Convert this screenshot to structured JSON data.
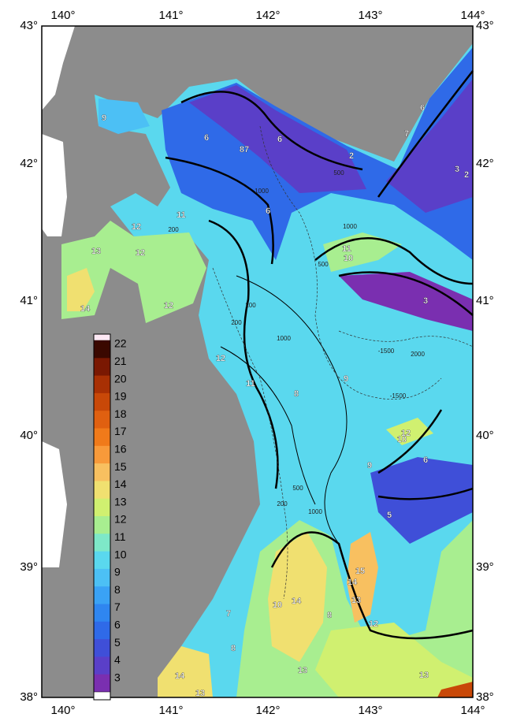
{
  "map": {
    "lon_labels": [
      "140°",
      "141°",
      "142°",
      "143°",
      "144°"
    ],
    "lat_labels": [
      "43°",
      "42°",
      "41°",
      "40°",
      "39°",
      "38°"
    ],
    "colorbar": {
      "labels": [
        22,
        21,
        20,
        19,
        18,
        17,
        16,
        15,
        14,
        13,
        12,
        11,
        10,
        9,
        8,
        7,
        6,
        5,
        4,
        3
      ],
      "colors": [
        "#3a0800",
        "#7a1802",
        "#a83004",
        "#c84808",
        "#e06010",
        "#f07a1a",
        "#f89a3a",
        "#f8c060",
        "#f0e070",
        "#d0f070",
        "#a8ee90",
        "#7ee8c8",
        "#5ad8ee",
        "#4cc0f5",
        "#3aa2f5",
        "#2f86f0",
        "#2f6ae8",
        "#3f4fd8",
        "#5a3fc8",
        "#7a2fb0"
      ]
    },
    "contour_labels": [
      9,
      6,
      87,
      6,
      2,
      6,
      7,
      3,
      2,
      6,
      11,
      12,
      13,
      12,
      11,
      10,
      3,
      14,
      12,
      12,
      11,
      8,
      9,
      12,
      10,
      6,
      9,
      5,
      15,
      14,
      13,
      10,
      14,
      7,
      8,
      12,
      8,
      13,
      13,
      14,
      13
    ],
    "depth_labels": [
      200,
      1000,
      500,
      1000,
      500,
      200,
      1000,
      -1500,
      -1500,
      2000,
      200,
      500,
      200,
      1000
    ]
  }
}
